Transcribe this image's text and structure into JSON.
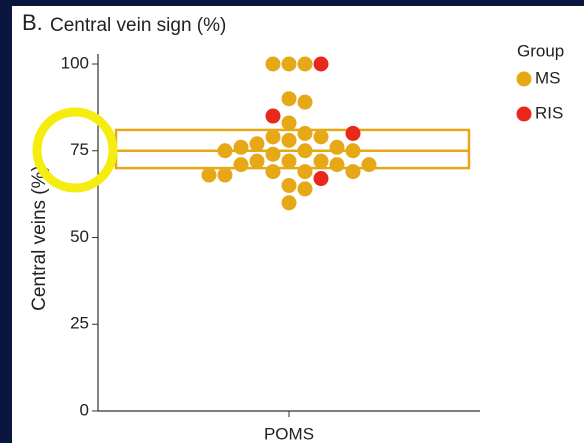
{
  "chart_data": {
    "type": "strip",
    "panel_label": "B.",
    "title": "Central vein sign (%)",
    "y_label": "Central veins (%)",
    "categories": [
      "POMS"
    ],
    "ylim": [
      0,
      100
    ],
    "yticks": [
      0,
      25,
      50,
      75,
      100
    ],
    "legend_title": "Group",
    "legend_position": "right",
    "box": {
      "q1": 70,
      "median": 75,
      "q3": 81,
      "color": "#e6a817"
    },
    "series": [
      {
        "name": "MS",
        "color": "#e6a817",
        "values": [
          100,
          100,
          100,
          90,
          89,
          83,
          80,
          79,
          79,
          78,
          77,
          76,
          76,
          75,
          75,
          75,
          74,
          72,
          72,
          72,
          71,
          71,
          71,
          69,
          69,
          69,
          68,
          68,
          65,
          64,
          60
        ]
      },
      {
        "name": "RIS",
        "color": "#e8281a",
        "values": [
          100,
          85,
          80,
          67
        ]
      }
    ]
  }
}
